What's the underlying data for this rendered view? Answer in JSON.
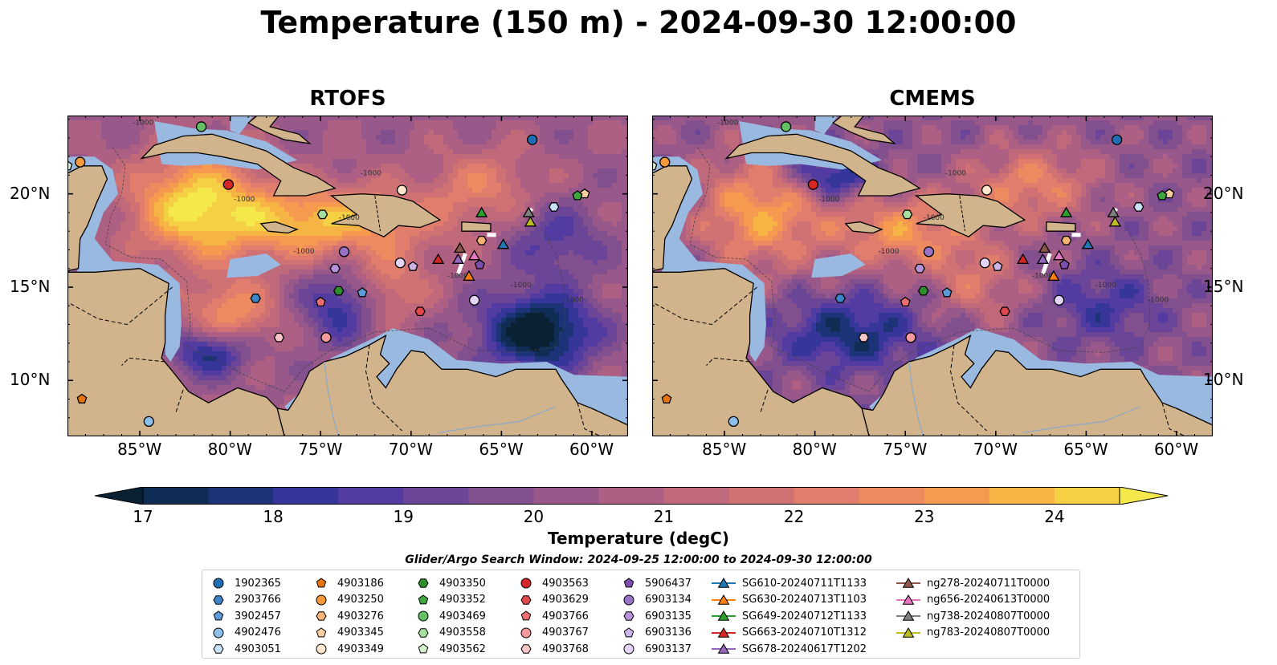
{
  "title": "Temperature (150 m) - 2024-09-30 12:00:00",
  "panels": [
    {
      "name": "RTOFS"
    },
    {
      "name": "CMEMS"
    }
  ],
  "map": {
    "lon_range": [
      -89,
      -58
    ],
    "lat_range": [
      7,
      24.2
    ],
    "lon_ticks": [
      "85°W",
      "80°W",
      "75°W",
      "70°W",
      "65°W",
      "60°W"
    ],
    "lat_ticks": [
      "20°N",
      "15°N",
      "10°N"
    ],
    "contour_label": "-1000",
    "colors": {
      "land": "#d2b48c",
      "shelf": "#9ab9e0"
    }
  },
  "colorbar": {
    "label": "Temperature (degC)",
    "ticks": [
      "17",
      "18",
      "19",
      "20",
      "21",
      "22",
      "23",
      "24"
    ],
    "min": 16.75,
    "max": 24.5,
    "colors": [
      "#0a2033",
      "#0f2c54",
      "#1c3377",
      "#35359a",
      "#523ca1",
      "#6b4597",
      "#824f8f",
      "#98588a",
      "#ad6083",
      "#c0697b",
      "#d07274",
      "#e07d6c",
      "#ee8a5f",
      "#f69a4f",
      "#f6b444",
      "#f5cf44",
      "#f4e84b"
    ]
  },
  "legend": {
    "title": "Glider/Argo Search Window: 2024-09-25 12:00:00 to 2024-09-30 12:00:00",
    "columns": [
      [
        {
          "label": "1902365",
          "marker": "circle",
          "color": "#1f6eb4"
        },
        {
          "label": "2903766",
          "marker": "hexagon",
          "color": "#3b85c8"
        },
        {
          "label": "3902457",
          "marker": "pentagon",
          "color": "#5b9bd8"
        },
        {
          "label": "4902476",
          "marker": "circle",
          "color": "#8cc0ea"
        },
        {
          "label": "4903051",
          "marker": "hexagon",
          "color": "#c8e1f7"
        }
      ],
      [
        {
          "label": "4903186",
          "marker": "pentagon",
          "color": "#e6740f"
        },
        {
          "label": "4903250",
          "marker": "circle",
          "color": "#f59a3a"
        },
        {
          "label": "4903276",
          "marker": "hexagon",
          "color": "#f8b274"
        },
        {
          "label": "4903345",
          "marker": "pentagon",
          "color": "#fbcfa0"
        },
        {
          "label": "4903349",
          "marker": "circle",
          "color": "#fde6cc"
        }
      ],
      [
        {
          "label": "4903350",
          "marker": "hexagon",
          "color": "#2c8e2c"
        },
        {
          "label": "4903352",
          "marker": "pentagon",
          "color": "#3fa63f"
        },
        {
          "label": "4903469",
          "marker": "circle",
          "color": "#63c063"
        },
        {
          "label": "4903558",
          "marker": "hexagon",
          "color": "#a6dea0"
        },
        {
          "label": "4903562",
          "marker": "pentagon",
          "color": "#d4f0cc"
        }
      ],
      [
        {
          "label": "4903563",
          "marker": "circle",
          "color": "#d62728"
        },
        {
          "label": "4903629",
          "marker": "hexagon",
          "color": "#e0474c"
        },
        {
          "label": "4903766",
          "marker": "pentagon",
          "color": "#ec6e74"
        },
        {
          "label": "4903767",
          "marker": "circle",
          "color": "#f4999c"
        },
        {
          "label": "4903768",
          "marker": "hexagon",
          "color": "#f9c6c8"
        }
      ],
      [
        {
          "label": "5906437",
          "marker": "pentagon",
          "color": "#7b4fae"
        },
        {
          "label": "6903134",
          "marker": "circle",
          "color": "#9a72c8"
        },
        {
          "label": "6903135",
          "marker": "hexagon",
          "color": "#b493db"
        },
        {
          "label": "6903136",
          "marker": "pentagon",
          "color": "#cdb5ea"
        },
        {
          "label": "6903137",
          "marker": "circle",
          "color": "#e4d5f6"
        }
      ],
      [
        {
          "label": "SG610-20240711T1133",
          "marker": "triangle",
          "color": "#1f77b4"
        },
        {
          "label": "SG630-20240713T1103",
          "marker": "triangle",
          "color": "#ff7f0e"
        },
        {
          "label": "SG649-20240712T1133",
          "marker": "triangle",
          "color": "#2ca02c"
        },
        {
          "label": "SG663-20240710T1312",
          "marker": "triangle",
          "color": "#d62728"
        },
        {
          "label": "SG678-20240617T1202",
          "marker": "triangle",
          "color": "#9467bd"
        }
      ],
      [
        {
          "label": "ng278-20240711T0000",
          "marker": "triangle",
          "color": "#8c564b"
        },
        {
          "label": "ng656-20240613T0000",
          "marker": "triangle",
          "color": "#e377c2"
        },
        {
          "label": "ng738-20240807T0000",
          "marker": "triangle",
          "color": "#7f7f7f"
        },
        {
          "label": "ng783-20240807T0000",
          "marker": "triangle",
          "color": "#bcbd22"
        }
      ]
    ]
  },
  "platforms": [
    {
      "label": "1902365",
      "lon": -63.3,
      "lat": 22.9
    },
    {
      "label": "2903766",
      "lon": -78.6,
      "lat": 14.4
    },
    {
      "label": "3902457",
      "lon": -72.7,
      "lat": 14.7
    },
    {
      "label": "4902476",
      "lon": -84.5,
      "lat": 7.8
    },
    {
      "label": "4903051",
      "lon": -62.1,
      "lat": 19.3
    },
    {
      "label": "4903186",
      "lon": -88.2,
      "lat": 9.0
    },
    {
      "label": "4903250",
      "lon": -88.3,
      "lat": 21.7
    },
    {
      "label": "4903276",
      "lon": -66.1,
      "lat": 17.5
    },
    {
      "label": "4903345",
      "lon": -60.4,
      "lat": 20.0
    },
    {
      "label": "4903349",
      "lon": -70.5,
      "lat": 20.2
    },
    {
      "label": "4903350",
      "lon": -74.0,
      "lat": 14.8
    },
    {
      "label": "4903352",
      "lon": -60.8,
      "lat": 19.9
    },
    {
      "label": "4903469",
      "lon": -81.6,
      "lat": 23.6
    },
    {
      "label": "4903558",
      "lon": -74.9,
      "lat": 18.9
    },
    {
      "label": "4903562",
      "lon": -89.0,
      "lat": 21.5
    },
    {
      "label": "4903563",
      "lon": -80.1,
      "lat": 20.5
    },
    {
      "label": "4903629",
      "lon": -69.5,
      "lat": 13.7
    },
    {
      "label": "4903766",
      "lon": -75.0,
      "lat": 14.2
    },
    {
      "label": "4903767",
      "lon": -74.7,
      "lat": 12.3
    },
    {
      "label": "4903768",
      "lon": -77.3,
      "lat": 12.3
    },
    {
      "label": "5906437",
      "lon": -66.2,
      "lat": 16.2
    },
    {
      "label": "6903134",
      "lon": -73.7,
      "lat": 16.9
    },
    {
      "label": "6903135",
      "lon": -74.2,
      "lat": 16.0
    },
    {
      "label": "6903136",
      "lon": -69.9,
      "lat": 16.1
    },
    {
      "label": "6903137",
      "lon": -70.6,
      "lat": 16.3
    },
    {
      "label": "SG610-20240711T1133",
      "lon": -64.9,
      "lat": 17.3
    },
    {
      "label": "SG630-20240713T1103",
      "lon": -66.8,
      "lat": 15.6
    },
    {
      "label": "SG649-20240712T1133",
      "lon": -66.1,
      "lat": 19.0
    },
    {
      "label": "SG663-20240710T1312",
      "lon": -68.5,
      "lat": 16.5
    },
    {
      "label": "SG678-20240617T1202",
      "lon": -67.4,
      "lat": 16.5
    },
    {
      "label": "ng278-20240711T0000",
      "lon": -67.3,
      "lat": 17.1
    },
    {
      "label": "ng656-20240613T0000",
      "lon": -66.5,
      "lat": 16.7
    },
    {
      "label": "ng738-20240807T0000",
      "lon": -63.5,
      "lat": 19.0
    },
    {
      "label": "ng783-20240807T0000",
      "lon": -63.4,
      "lat": 18.5
    }
  ],
  "ortho_platform": {
    "label": "6903137",
    "lon": -66.5,
    "lat": 14.3
  }
}
